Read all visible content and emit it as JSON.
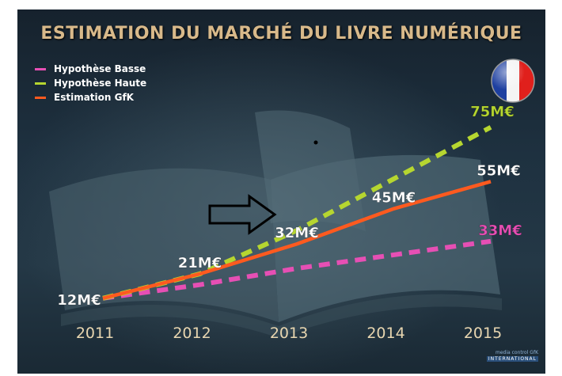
{
  "title": "ESTIMATION DU MARCHÉ DU LIVRE NUMÉRIQUE",
  "logo": {
    "line1": "media control GfK",
    "line2": "INTERNATIONAL"
  },
  "colors": {
    "basse": "#e64fb4",
    "haute": "#b6d630",
    "gfk": "#ff5a1f",
    "axis_text": "#e8d6b0",
    "title": "#d8b98a"
  },
  "chart_data": {
    "type": "line",
    "title": "ESTIMATION DU MARCHÉ DU LIVRE NUMÉRIQUE",
    "xlabel": "",
    "ylabel": "",
    "categories": [
      "2011",
      "2012",
      "2013",
      "2014",
      "2015"
    ],
    "legend_position": "top-left",
    "grid": false,
    "series": [
      {
        "name": "Hypothèse Basse",
        "color": "#e64fb4",
        "style": "dashed",
        "values": [
          12,
          17,
          23,
          28,
          33
        ],
        "end_label": "33M€"
      },
      {
        "name": "Hypothèse Haute",
        "color": "#b6d630",
        "style": "dashed",
        "values": [
          12,
          21,
          37,
          56,
          75
        ],
        "end_label": "75M€"
      },
      {
        "name": "Estimation GfK",
        "color": "#ff5a1f",
        "style": "solid",
        "values": [
          12,
          21,
          32,
          45,
          55
        ],
        "point_labels": [
          "12M€",
          "21M€",
          "32M€",
          "45M€",
          "55M€"
        ]
      }
    ]
  }
}
